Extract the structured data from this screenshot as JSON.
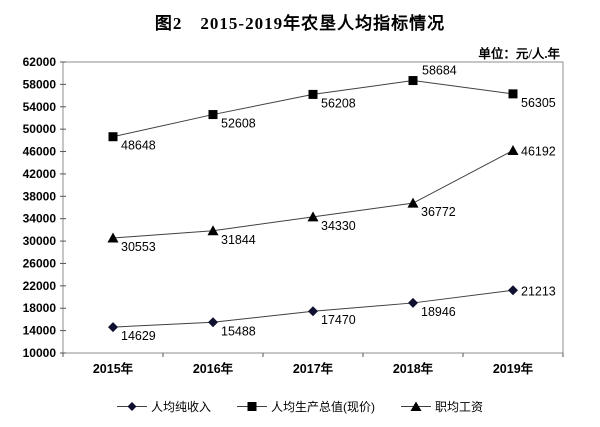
{
  "chart_data": {
    "type": "line",
    "title": "图2　2015-2019年农垦人均指标情况",
    "unit": "单位：元/人.年",
    "categories": [
      "2015年",
      "2016年",
      "2017年",
      "2018年",
      "2019年"
    ],
    "series": [
      {
        "name": "人均纯收入",
        "marker": "diamond",
        "color": "#101030",
        "values": [
          14629,
          15488,
          17470,
          18946,
          21213
        ]
      },
      {
        "name": "人均生产总值(现价)",
        "marker": "square",
        "color": "#000000",
        "values": [
          48648,
          52608,
          56208,
          58684,
          56305
        ]
      },
      {
        "name": "职均工资",
        "marker": "triangle",
        "color": "#000000",
        "values": [
          30553,
          31844,
          34330,
          36772,
          46192
        ]
      }
    ],
    "xlabel": "",
    "ylabel": "",
    "ylim": [
      10000,
      62000
    ],
    "yticks": [
      10000,
      14000,
      18000,
      22000,
      26000,
      30000,
      34000,
      38000,
      42000,
      46000,
      50000,
      54000,
      58000,
      62000
    ],
    "grid": false,
    "show_data_labels": true,
    "legend_position": "bottom",
    "line_color": "#404040",
    "frame_color": "#8c8c8c"
  }
}
